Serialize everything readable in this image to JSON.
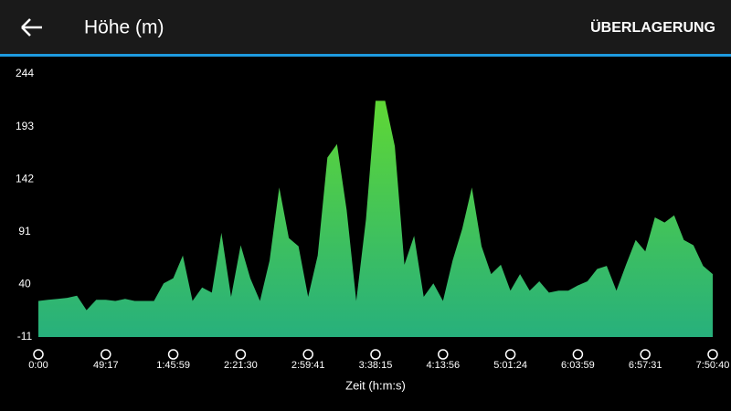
{
  "header": {
    "title": "Höhe (m)",
    "action": "ÜBERLAGERUNG"
  },
  "chart_data": {
    "type": "area",
    "x_label": "Zeit (h:m:s)",
    "x_tick_labels": [
      "0:00",
      "49:17",
      "1:45:59",
      "2:21:30",
      "2:59:41",
      "3:38:15",
      "4:13:56",
      "5:01:24",
      "6:03:59",
      "6:57:31",
      "7:50:40"
    ],
    "values": [
      24,
      25,
      26,
      27,
      29,
      15,
      25,
      25,
      24,
      26,
      24,
      24,
      24,
      41,
      46,
      68,
      24,
      37,
      32,
      90,
      28,
      78,
      46,
      24,
      63,
      134,
      85,
      77,
      28,
      68,
      163,
      176,
      112,
      24,
      103,
      218,
      218,
      174,
      59,
      87,
      28,
      41,
      24,
      63,
      94,
      134,
      77,
      50,
      59,
      34,
      50,
      34,
      43,
      32,
      34,
      34,
      39,
      43,
      55,
      58,
      34,
      59,
      83,
      72,
      105,
      100,
      107,
      83,
      78,
      58,
      50
    ],
    "color_top": "#5fd735",
    "color_bottom": "#27b07c",
    "ylim": [
      -11,
      244
    ],
    "yticks": [
      244,
      193,
      142,
      91,
      40,
      -11
    ]
  }
}
